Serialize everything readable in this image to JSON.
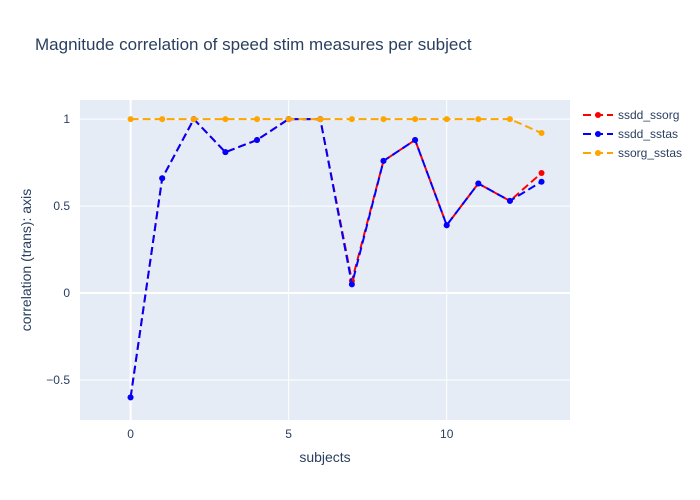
{
  "chart_data": {
    "type": "line",
    "title": "Magnitude correlation of speed stim measures per subject",
    "xlabel": "subjects",
    "ylabel": "correlation (trans): axis",
    "xlim": [
      -1.6,
      13.9
    ],
    "ylim": [
      -0.73,
      1.11
    ],
    "x_ticks": [
      0,
      5,
      10
    ],
    "y_ticks": [
      -0.5,
      0,
      0.5,
      1
    ],
    "x_tick_labels": [
      "0",
      "5",
      "10"
    ],
    "y_tick_labels": [
      "−0.5",
      "0",
      "0.5",
      "1"
    ],
    "grid": true,
    "legend_position": "top-right, outside plot",
    "x": [
      0,
      1,
      2,
      3,
      4,
      5,
      6,
      7,
      8,
      9,
      10,
      11,
      12,
      13
    ],
    "series": [
      {
        "name": "ssdd_ssorg",
        "color": "#ff0000",
        "values": [
          -0.6,
          0.66,
          1.0,
          0.81,
          0.88,
          1.0,
          1.0,
          0.07,
          0.76,
          0.88,
          0.39,
          0.63,
          0.53,
          0.69
        ]
      },
      {
        "name": "ssdd_sstas",
        "color": "#0000ff",
        "values": [
          -0.6,
          0.66,
          1.0,
          0.81,
          0.88,
          1.0,
          1.0,
          0.05,
          0.76,
          0.88,
          0.39,
          0.63,
          0.53,
          0.64
        ]
      },
      {
        "name": "ssorg_sstas",
        "color": "#ffa500",
        "values": [
          1.0,
          1.0,
          1.0,
          1.0,
          1.0,
          1.0,
          1.0,
          1.0,
          1.0,
          1.0,
          1.0,
          1.0,
          1.0,
          0.92
        ]
      }
    ],
    "plot_background": "#e5ecf6"
  }
}
